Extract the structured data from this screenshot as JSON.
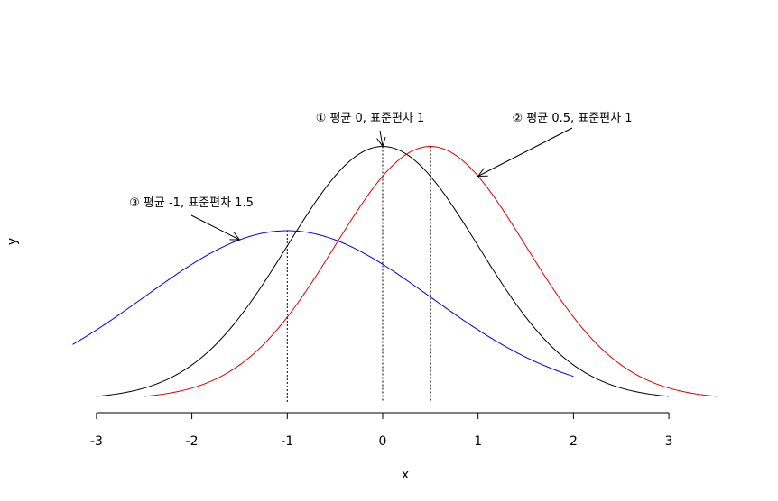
{
  "chart_data": {
    "type": "line",
    "title": "",
    "xlabel": "x",
    "ylabel": "y",
    "xlim": [
      -3,
      3
    ],
    "x_ticks": [
      -3,
      -2,
      -1,
      0,
      1,
      2,
      3
    ],
    "x_tick_labels": [
      "-3",
      "-2",
      "-1",
      "0",
      "1",
      "2",
      "3"
    ],
    "grid": false,
    "series": [
      {
        "mean": 0,
        "sd": 1,
        "x_range": [
          -3,
          3
        ],
        "color": "#000000"
      },
      {
        "mean": 0.5,
        "sd": 1,
        "x_range": [
          -2.5,
          3.5
        ],
        "color": "#e00000"
      },
      {
        "mean": -1,
        "sd": 1.5,
        "x_range": [
          -3.25,
          2
        ],
        "color": "#0000e0"
      }
    ],
    "vlines": [
      -1,
      0,
      0.5
    ],
    "annotations": [
      {
        "text": "① 평균 0, 표준편차 1",
        "target_x": 0,
        "target_on_series": 0
      },
      {
        "text": "② 평균 0.5, 표준편차 1",
        "target_x": 1,
        "target_on_series": 1
      },
      {
        "text": "③ 평균 -1, 표준편차 1.5",
        "target_x": -1.5,
        "target_on_series": 2
      }
    ]
  }
}
